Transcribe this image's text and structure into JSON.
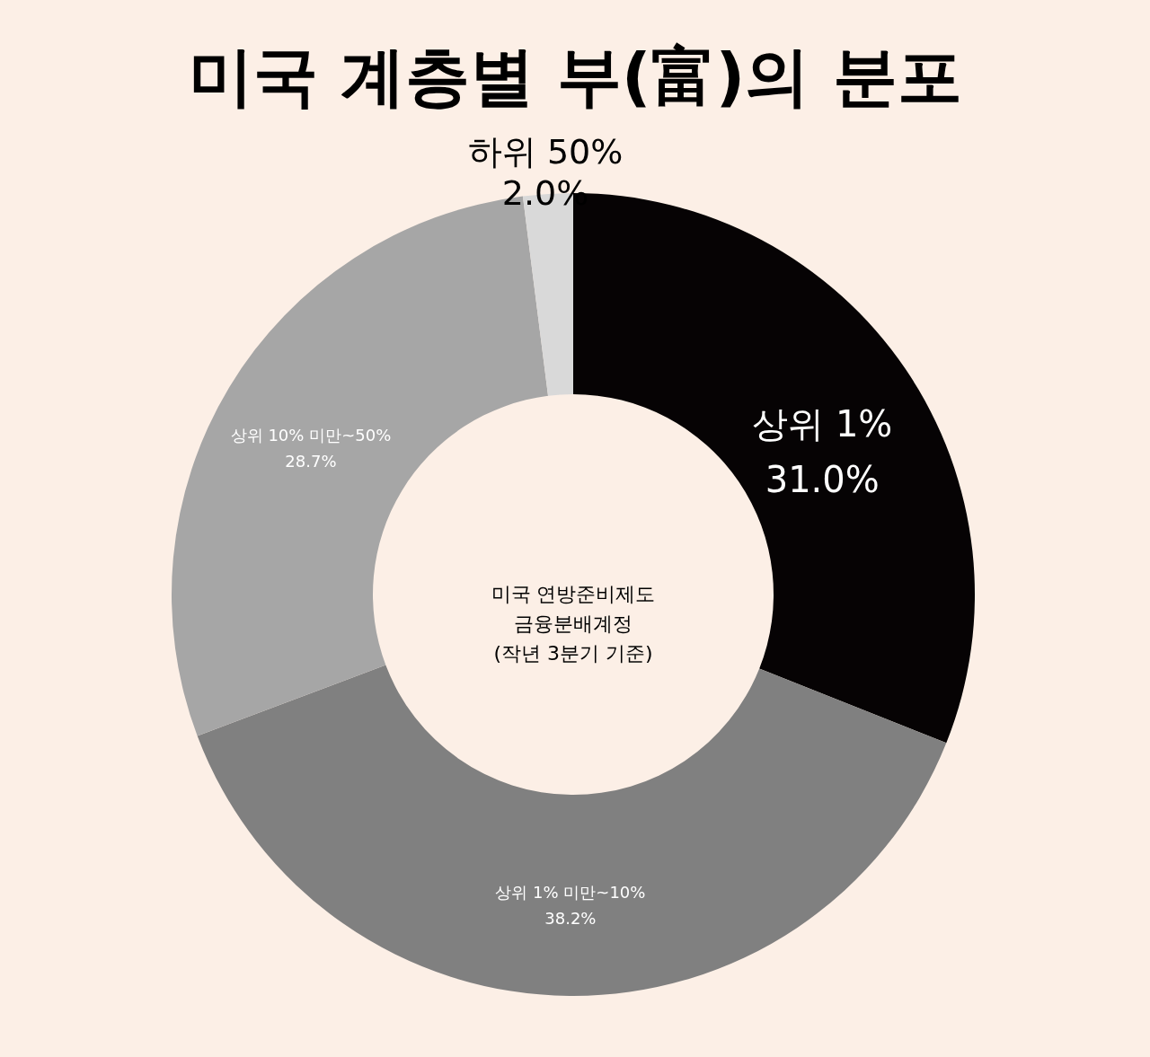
{
  "chart_data": {
    "type": "donut",
    "title": "미국 계층별 부(富)의 분포",
    "categories": [
      "상위 1%",
      "상위 1% 미만~10%",
      "상위 10% 미만~50%",
      "하위 50%"
    ],
    "values": [
      31.0,
      38.2,
      28.7,
      2.0
    ],
    "value_labels": [
      "31.0%",
      "38.2%",
      "28.7%",
      "2.0%"
    ],
    "colors": [
      "#060304",
      "#808080",
      "#a6a6a6",
      "#d9d9d9"
    ],
    "annotations": [
      "미국 연방준비제도\n금융분배계정\n(작년 3분기 기준)"
    ]
  }
}
